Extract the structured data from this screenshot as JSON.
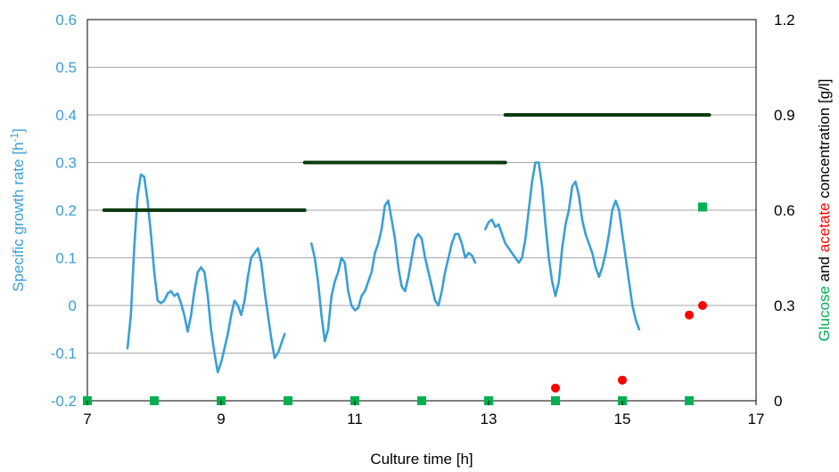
{
  "chart_data": {
    "type": "line",
    "xlabel": "Culture time [h]",
    "ylabel_left": {
      "text": "Specific growth rate [h",
      "superscript": "-1",
      "suffix": "]",
      "color": "#3a9fd6"
    },
    "ylabel_right": {
      "parts": [
        {
          "text": "Glucose",
          "color": "#00b050"
        },
        {
          "text": " and ",
          "color": "#000000"
        },
        {
          "text": "acetate",
          "color": "#ff0000"
        },
        {
          "text": " concentration [g/l]",
          "color": "#000000"
        }
      ]
    },
    "xlim": [
      7,
      17
    ],
    "ylim_left": [
      -0.2,
      0.6
    ],
    "ylim_right": [
      0,
      1.2
    ],
    "x_ticks": [
      "7",
      "9",
      "11",
      "13",
      "15",
      "17"
    ],
    "y_left_ticks": [
      "-0.2",
      "-0.1",
      "0",
      "0.1",
      "0.2",
      "0.3",
      "0.4",
      "0.5",
      "0.6"
    ],
    "y_right_ticks": [
      "0",
      "0.3",
      "0.6",
      "0.9",
      "1.2"
    ],
    "grid": true,
    "colors": {
      "growth": "#3a9fd6",
      "setpoint": "#0d3b10",
      "glucose": "#00b050",
      "acetate": "#ff0000"
    },
    "series": [
      {
        "axis": "left",
        "style": "line",
        "segments": [
          [
            [
              7.6,
              -0.09
            ],
            [
              7.65,
              -0.02
            ],
            [
              7.7,
              0.12
            ],
            [
              7.75,
              0.23
            ],
            [
              7.8,
              0.275
            ],
            [
              7.85,
              0.27
            ],
            [
              7.9,
              0.22
            ],
            [
              7.95,
              0.15
            ],
            [
              8.0,
              0.07
            ],
            [
              8.05,
              0.01
            ],
            [
              8.1,
              0.005
            ],
            [
              8.15,
              0.01
            ],
            [
              8.2,
              0.025
            ],
            [
              8.25,
              0.03
            ],
            [
              8.3,
              0.02
            ],
            [
              8.35,
              0.025
            ],
            [
              8.4,
              0.005
            ],
            [
              8.45,
              -0.02
            ],
            [
              8.5,
              -0.055
            ],
            [
              8.55,
              -0.02
            ],
            [
              8.6,
              0.03
            ],
            [
              8.65,
              0.07
            ],
            [
              8.7,
              0.08
            ],
            [
              8.75,
              0.07
            ],
            [
              8.8,
              0.02
            ],
            [
              8.85,
              -0.05
            ],
            [
              8.9,
              -0.1
            ],
            [
              8.95,
              -0.14
            ],
            [
              9.0,
              -0.12
            ],
            [
              9.05,
              -0.09
            ],
            [
              9.1,
              -0.06
            ],
            [
              9.15,
              -0.02
            ],
            [
              9.2,
              0.01
            ],
            [
              9.25,
              0.0
            ],
            [
              9.3,
              -0.02
            ],
            [
              9.35,
              0.01
            ],
            [
              9.4,
              0.06
            ],
            [
              9.45,
              0.1
            ],
            [
              9.5,
              0.11
            ],
            [
              9.55,
              0.12
            ],
            [
              9.6,
              0.09
            ],
            [
              9.65,
              0.03
            ],
            [
              9.7,
              -0.02
            ],
            [
              9.75,
              -0.07
            ],
            [
              9.8,
              -0.11
            ],
            [
              9.85,
              -0.1
            ],
            [
              9.9,
              -0.08
            ],
            [
              9.95,
              -0.06
            ]
          ],
          [
            [
              10.35,
              0.13
            ],
            [
              10.4,
              0.1
            ],
            [
              10.45,
              0.05
            ],
            [
              10.5,
              -0.02
            ],
            [
              10.55,
              -0.075
            ],
            [
              10.6,
              -0.05
            ],
            [
              10.65,
              0.02
            ],
            [
              10.7,
              0.05
            ],
            [
              10.75,
              0.07
            ],
            [
              10.8,
              0.1
            ],
            [
              10.85,
              0.09
            ],
            [
              10.9,
              0.03
            ],
            [
              10.95,
              0.0
            ],
            [
              11.0,
              -0.01
            ],
            [
              11.05,
              -0.005
            ],
            [
              11.1,
              0.02
            ],
            [
              11.15,
              0.03
            ],
            [
              11.2,
              0.05
            ],
            [
              11.25,
              0.07
            ],
            [
              11.3,
              0.11
            ],
            [
              11.35,
              0.13
            ],
            [
              11.4,
              0.16
            ],
            [
              11.45,
              0.21
            ],
            [
              11.5,
              0.22
            ],
            [
              11.55,
              0.18
            ],
            [
              11.6,
              0.14
            ],
            [
              11.65,
              0.08
            ],
            [
              11.7,
              0.04
            ],
            [
              11.75,
              0.03
            ],
            [
              11.8,
              0.06
            ],
            [
              11.85,
              0.1
            ],
            [
              11.9,
              0.14
            ],
            [
              11.95,
              0.15
            ],
            [
              12.0,
              0.14
            ],
            [
              12.05,
              0.1
            ],
            [
              12.1,
              0.07
            ],
            [
              12.15,
              0.04
            ],
            [
              12.2,
              0.01
            ],
            [
              12.25,
              0.0
            ],
            [
              12.3,
              0.03
            ],
            [
              12.35,
              0.07
            ],
            [
              12.4,
              0.1
            ],
            [
              12.45,
              0.13
            ],
            [
              12.5,
              0.15
            ],
            [
              12.55,
              0.15
            ],
            [
              12.6,
              0.13
            ],
            [
              12.65,
              0.1
            ],
            [
              12.7,
              0.11
            ],
            [
              12.75,
              0.105
            ],
            [
              12.8,
              0.09
            ]
          ],
          [
            [
              12.95,
              0.16
            ],
            [
              13.0,
              0.175
            ],
            [
              13.05,
              0.18
            ],
            [
              13.1,
              0.165
            ],
            [
              13.15,
              0.17
            ],
            [
              13.2,
              0.15
            ],
            [
              13.25,
              0.13
            ],
            [
              13.3,
              0.12
            ],
            [
              13.35,
              0.11
            ],
            [
              13.4,
              0.1
            ],
            [
              13.45,
              0.09
            ],
            [
              13.5,
              0.1
            ],
            [
              13.55,
              0.14
            ],
            [
              13.6,
              0.2
            ],
            [
              13.65,
              0.26
            ],
            [
              13.7,
              0.3
            ],
            [
              13.75,
              0.3
            ],
            [
              13.8,
              0.25
            ],
            [
              13.85,
              0.17
            ],
            [
              13.9,
              0.1
            ],
            [
              13.95,
              0.05
            ],
            [
              14.0,
              0.02
            ],
            [
              14.05,
              0.05
            ],
            [
              14.1,
              0.12
            ],
            [
              14.15,
              0.17
            ],
            [
              14.2,
              0.2
            ],
            [
              14.25,
              0.25
            ],
            [
              14.3,
              0.26
            ],
            [
              14.35,
              0.23
            ],
            [
              14.4,
              0.18
            ],
            [
              14.45,
              0.15
            ],
            [
              14.5,
              0.13
            ],
            [
              14.55,
              0.11
            ],
            [
              14.6,
              0.08
            ],
            [
              14.65,
              0.06
            ],
            [
              14.7,
              0.08
            ],
            [
              14.75,
              0.11
            ],
            [
              14.8,
              0.15
            ],
            [
              14.85,
              0.2
            ],
            [
              14.9,
              0.22
            ],
            [
              14.95,
              0.2
            ],
            [
              15.0,
              0.15
            ],
            [
              15.05,
              0.1
            ],
            [
              15.1,
              0.05
            ],
            [
              15.15,
              0.0
            ],
            [
              15.2,
              -0.03
            ],
            [
              15.25,
              -0.05
            ]
          ]
        ]
      },
      {
        "axis": "left",
        "style": "step",
        "points": [
          [
            7.25,
            0.2
          ],
          [
            10.25,
            0.2
          ],
          [
            10.25,
            0.3
          ],
          [
            13.25,
            0.3
          ],
          [
            13.25,
            0.4
          ],
          [
            16.3,
            0.4
          ]
        ]
      },
      {
        "axis": "right",
        "style": "markers",
        "marker": "circle",
        "points": [
          [
            7,
            0
          ],
          [
            8,
            0
          ],
          [
            9,
            0
          ],
          [
            10,
            0
          ],
          [
            11,
            0
          ],
          [
            12,
            0
          ],
          [
            13,
            0
          ],
          [
            14,
            0.04
          ],
          [
            15,
            0.065
          ],
          [
            16,
            0.27
          ],
          [
            16.2,
            0.3
          ]
        ]
      },
      {
        "axis": "right",
        "style": "markers",
        "marker": "square",
        "points": [
          [
            7,
            0
          ],
          [
            8,
            0
          ],
          [
            9,
            0
          ],
          [
            10,
            0
          ],
          [
            11,
            0
          ],
          [
            12,
            0
          ],
          [
            13,
            0
          ],
          [
            14,
            0
          ],
          [
            15,
            0
          ],
          [
            16,
            0
          ],
          [
            16.2,
            0.61
          ]
        ]
      }
    ]
  }
}
